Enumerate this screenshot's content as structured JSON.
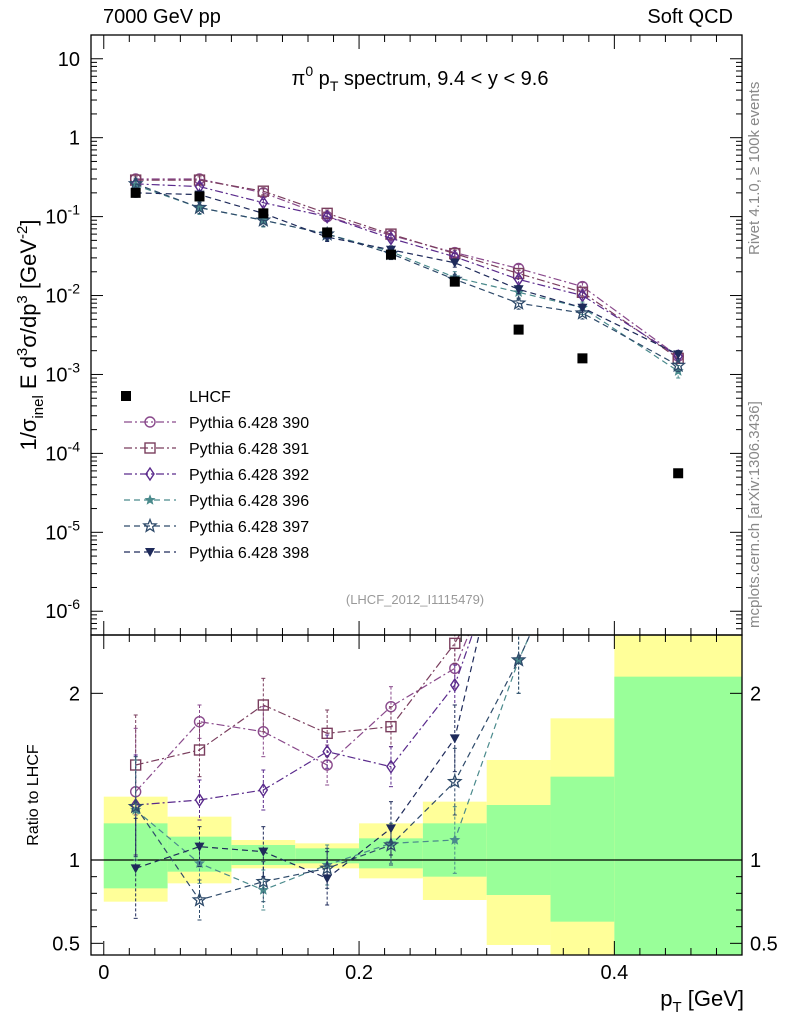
{
  "header": {
    "left": "7000 GeV pp",
    "right": "Soft QCD"
  },
  "side_text": {
    "rivet": "Rivet 4.1.0, ≥ 100k events",
    "mcplots": "mcplots.cern.ch [arXiv:1306.3436]"
  },
  "chart_data": [
    {
      "type": "scatter",
      "panel": "main",
      "title": "π⁰ p_T spectrum, 9.4 < y < 9.6",
      "title_parts": {
        "pi": "π",
        "zero": "0",
        "p": " p",
        "T": "T",
        "rest": " spectrum, 9.4 < y < 9.6"
      },
      "xlabel": "p_T [GeV]",
      "ylabel": "1/σ_inel E d³σ/dp³ [GeV⁻²]",
      "ylabel_parts": {
        "a": "1/σ",
        "b": "inel",
        "c": " E d",
        "d": "3",
        "e": "σ/dp",
        "f": "3",
        "g": " [GeV",
        "h": "-2",
        "i": "]"
      },
      "xlim": [
        -0.01,
        0.5
      ],
      "ylim": [
        5e-07,
        20
      ],
      "yscale": "log",
      "ytick_labels": [
        {
          "v": 1e-06,
          "base": "10",
          "exp": "-6"
        },
        {
          "v": 1e-05,
          "base": "10",
          "exp": "-5"
        },
        {
          "v": 0.0001,
          "base": "10",
          "exp": "-4"
        },
        {
          "v": 0.001,
          "base": "10",
          "exp": "-3"
        },
        {
          "v": 0.01,
          "base": "10",
          "exp": "-2"
        },
        {
          "v": 0.1,
          "base": "10",
          "exp": "-1"
        },
        {
          "v": 1,
          "base": "1",
          "exp": ""
        },
        {
          "v": 10,
          "base": "10",
          "exp": ""
        }
      ],
      "x": [
        0.025,
        0.075,
        0.125,
        0.175,
        0.225,
        0.275,
        0.325,
        0.375,
        0.45
      ],
      "data_series": {
        "name": "LHCF",
        "y": [
          0.2,
          0.18,
          0.11,
          0.063,
          0.033,
          0.015,
          0.0037,
          0.0016,
          5.6e-05
        ]
      },
      "series": [
        {
          "name": "Pythia 6.428 390",
          "color": "#8a4a8c",
          "marker": "circle-open",
          "dash": "8,3,2,3",
          "y": [
            0.3,
            0.3,
            0.2,
            0.1,
            0.058,
            0.035,
            0.022,
            0.013,
            0.0017
          ],
          "err": 0.12
        },
        {
          "name": "Pythia 6.428 391",
          "color": "#7a3e5e",
          "marker": "square-open",
          "dash": "8,3,2,3",
          "y": [
            0.29,
            0.29,
            0.21,
            0.11,
            0.06,
            0.034,
            0.019,
            0.011,
            0.0016
          ],
          "err": 0.1
        },
        {
          "name": "Pythia 6.428 392",
          "color": "#5a2a8c",
          "marker": "diamond-open",
          "dash": "8,3,2,3",
          "y": [
            0.26,
            0.24,
            0.15,
            0.1,
            0.053,
            0.031,
            0.016,
            0.01,
            0.0017
          ],
          "err": 0.1
        },
        {
          "name": "Pythia 6.428 396",
          "color": "#4a8a8c",
          "marker": "star-small",
          "dash": "6,4",
          "y": [
            0.25,
            0.13,
            0.09,
            0.06,
            0.036,
            0.017,
            0.011,
            0.007,
            0.0011
          ],
          "err": 0.18
        },
        {
          "name": "Pythia 6.428 397",
          "color": "#2e4a6a",
          "marker": "star-open",
          "dash": "6,4",
          "y": [
            0.26,
            0.13,
            0.09,
            0.06,
            0.034,
            0.016,
            0.008,
            0.006,
            0.0013
          ],
          "err": 0.16
        },
        {
          "name": "Pythia 6.428 398",
          "color": "#1e2a5a",
          "marker": "triangle-down",
          "dash": "6,4",
          "y": [
            0.2,
            0.19,
            0.11,
            0.055,
            0.038,
            0.026,
            0.012,
            0.007,
            0.0018
          ],
          "err": 0.12
        }
      ],
      "legend_data_label": "LHCF",
      "legend_position": "center-left",
      "watermark": "(LHCF_2012_I1115479)"
    },
    {
      "type": "scatter",
      "panel": "ratio",
      "ylabel": "Ratio to LHCF",
      "xlim": [
        -0.01,
        0.5
      ],
      "ylim": [
        0.43,
        2.35
      ],
      "yticks": [
        0.5,
        1,
        2
      ],
      "ytick_labels": [
        "0.5",
        "1",
        "2"
      ],
      "xticks": [
        0,
        0.2,
        0.4
      ],
      "xtick_labels": [
        "0",
        "0.2",
        "0.4"
      ],
      "bins": [
        {
          "lo": 0.0,
          "hi": 0.05,
          "green": [
            0.83,
            1.22
          ],
          "yellow": [
            0.75,
            1.38
          ]
        },
        {
          "lo": 0.05,
          "hi": 0.1,
          "green": [
            0.93,
            1.14
          ],
          "yellow": [
            0.86,
            1.26
          ]
        },
        {
          "lo": 0.1,
          "hi": 0.15,
          "green": [
            0.97,
            1.09
          ],
          "yellow": [
            0.95,
            1.12
          ]
        },
        {
          "lo": 0.15,
          "hi": 0.2,
          "green": [
            0.98,
            1.07
          ],
          "yellow": [
            0.95,
            1.1
          ]
        },
        {
          "lo": 0.2,
          "hi": 0.25,
          "green": [
            0.95,
            1.13
          ],
          "yellow": [
            0.89,
            1.22
          ]
        },
        {
          "lo": 0.25,
          "hi": 0.3,
          "green": [
            0.9,
            1.22
          ],
          "yellow": [
            0.76,
            1.35
          ]
        },
        {
          "lo": 0.3,
          "hi": 0.35,
          "green": [
            0.79,
            1.33
          ],
          "yellow": [
            0.49,
            1.6
          ]
        },
        {
          "lo": 0.35,
          "hi": 0.4,
          "green": [
            0.63,
            1.5
          ],
          "yellow": [
            0.42,
            1.85
          ]
        },
        {
          "lo": 0.4,
          "hi": 0.5,
          "green": [
            0.42,
            2.1
          ],
          "yellow": [
            0.42,
            2.35
          ]
        }
      ],
      "x": [
        0.025,
        0.075,
        0.125,
        0.175,
        0.225,
        0.275,
        0.325
      ],
      "series": [
        {
          "name": "Pythia 6.428 390",
          "y": [
            1.41,
            1.83,
            1.77,
            1.57,
            1.92,
            2.15,
            null
          ],
          "err": [
            0.38,
            0.1,
            0.15,
            0.12,
            0.12,
            0.12,
            null
          ]
        },
        {
          "name": "Pythia 6.428 391",
          "y": [
            1.57,
            1.66,
            1.93,
            1.76,
            1.8,
            2.3,
            null
          ],
          "err": [
            0.3,
            0.16,
            0.16,
            0.14,
            0.12,
            0.12,
            null
          ]
        },
        {
          "name": "Pythia 6.428 392",
          "y": [
            1.33,
            1.36,
            1.42,
            1.65,
            1.56,
            2.05,
            null
          ],
          "err": [
            0.3,
            0.12,
            0.12,
            0.1,
            0.12,
            0.12,
            null
          ]
        },
        {
          "name": "Pythia 6.428 396",
          "y": [
            1.3,
            0.98,
            0.82,
            0.97,
            1.1,
            1.12,
            2.2
          ],
          "err": [
            0.3,
            0.12,
            0.12,
            0.12,
            0.12,
            0.2,
            0.2
          ]
        },
        {
          "name": "Pythia 6.428 397",
          "y": [
            1.32,
            0.76,
            0.87,
            0.95,
            1.09,
            1.47,
            2.2
          ],
          "err": [
            0.3,
            0.12,
            0.12,
            0.12,
            0.12,
            0.2,
            0.2
          ]
        },
        {
          "name": "Pythia 6.428 398",
          "y": [
            0.95,
            1.08,
            1.05,
            0.89,
            1.19,
            1.73,
            null
          ],
          "err": [
            0.3,
            0.12,
            0.15,
            0.16,
            0.16,
            0.2,
            null
          ]
        }
      ]
    }
  ]
}
